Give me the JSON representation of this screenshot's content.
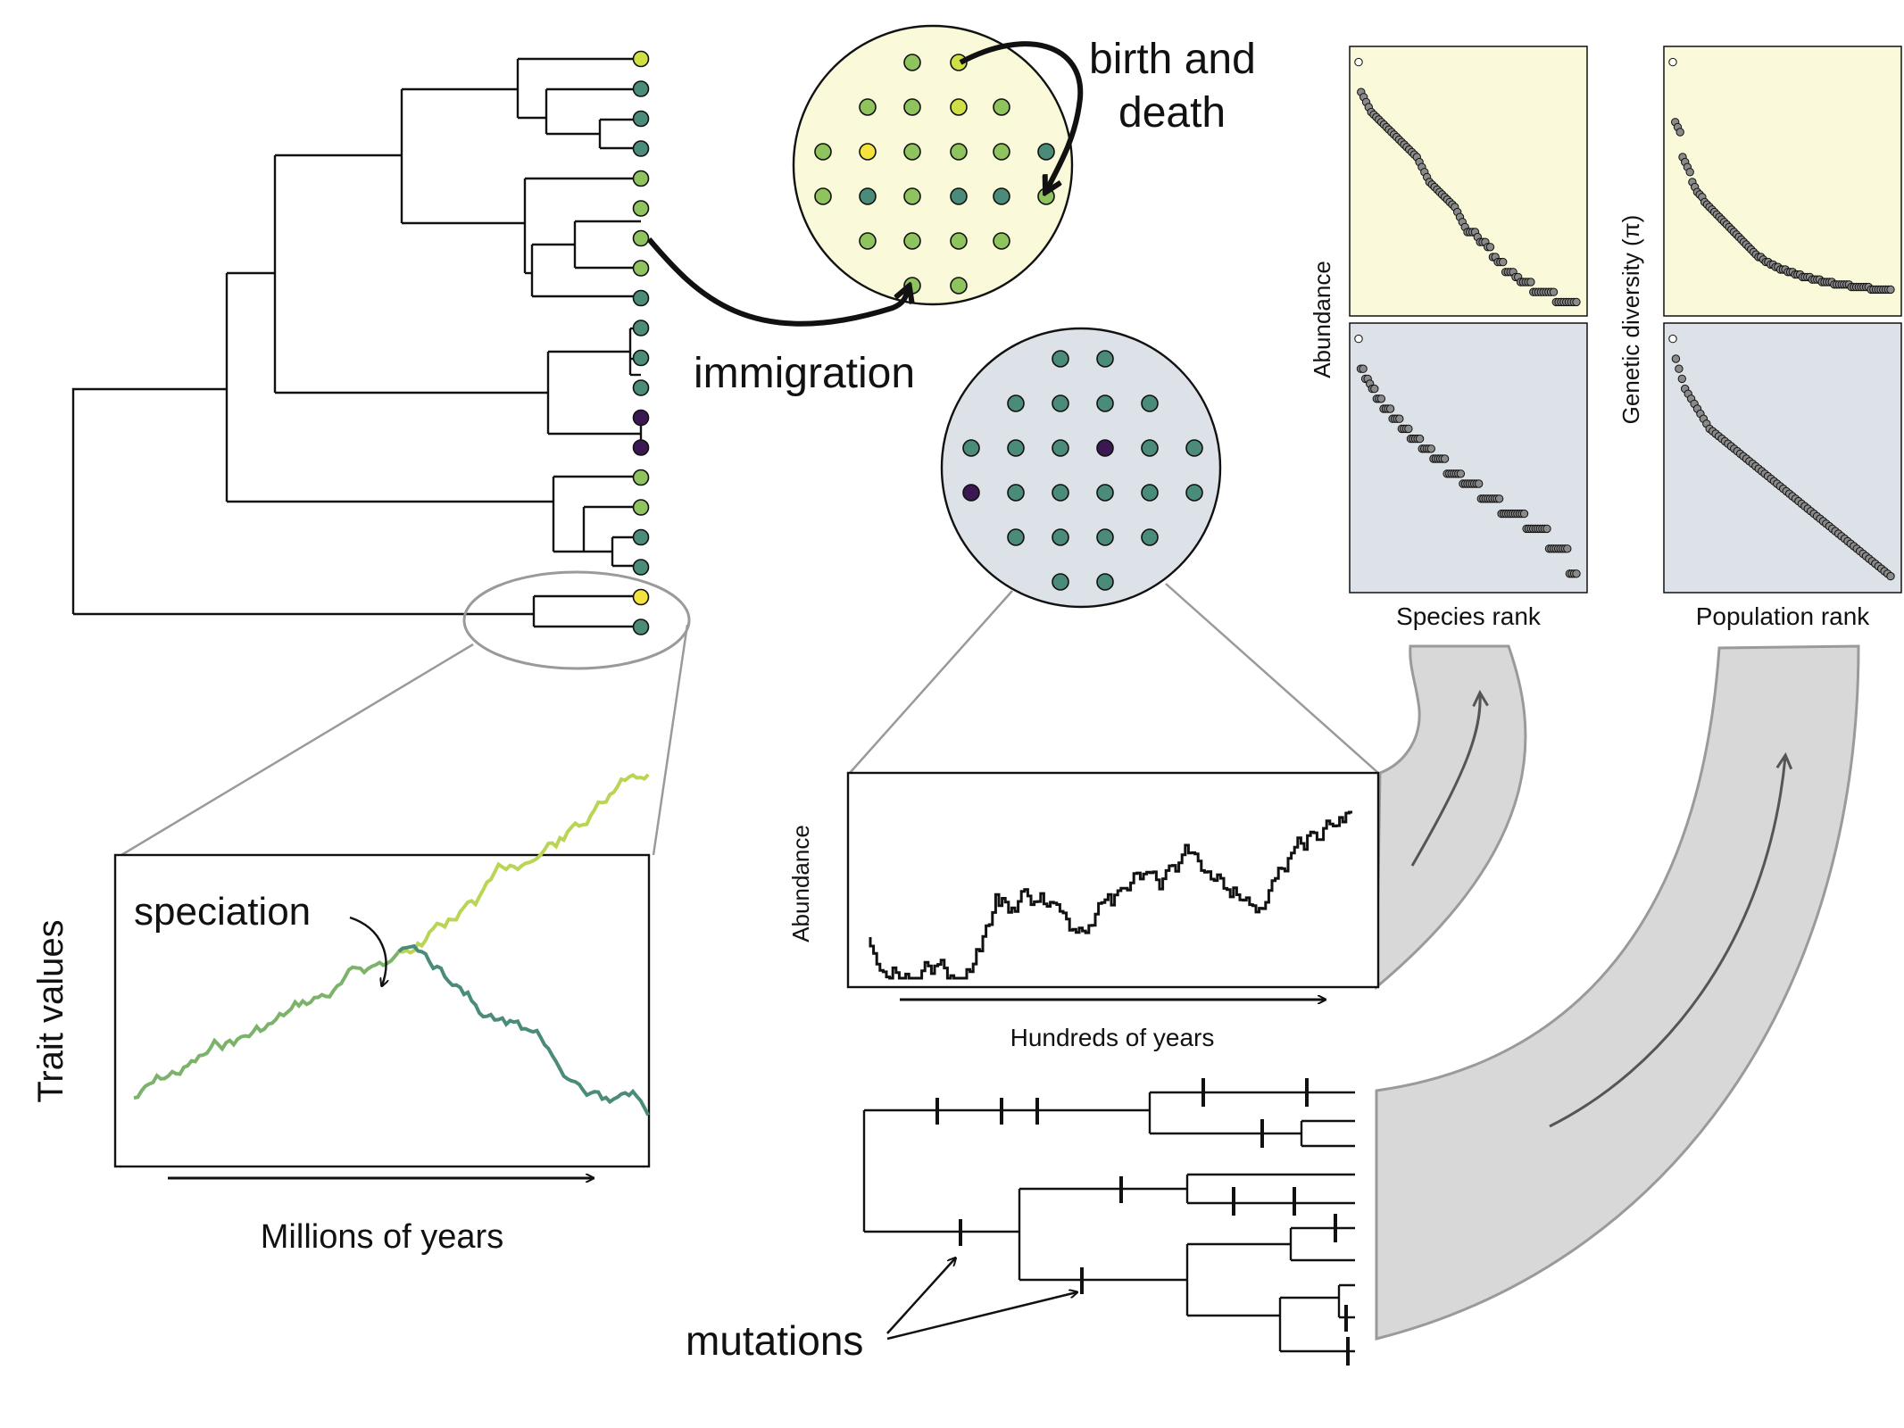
{
  "labels": {
    "birth_line1": "birth and",
    "birth_line2": "death",
    "immigration": "immigration",
    "speciation": "speciation",
    "trait_values": "Trait values",
    "millions_of_years": "Millions of years",
    "abundance_ts": "Abundance",
    "hundreds_of_years": "Hundreds of years",
    "mutations": "mutations",
    "abundance_rank": "Abundance",
    "genetic_diversity": "Genetic diversity (π)",
    "species_rank": "Species rank",
    "population_rank": "Population rank"
  },
  "colors": {
    "yellow_panel": "#faf9d9",
    "gray_panel": "#dce2e7",
    "teal": "#4b8b7a",
    "green": "#8fc35d",
    "lime": "#cfe046",
    "yellow": "#f4e33d",
    "purple": "#3c1852",
    "ribbon": "#d8d8d8",
    "outline": "#9a9a9a"
  },
  "phylo_tips": [
    "lime",
    "teal",
    "teal",
    "teal",
    "green",
    "green",
    "green",
    "green",
    "teal",
    "teal",
    "teal",
    "teal",
    "purple",
    "purple",
    "green",
    "green",
    "teal",
    "teal",
    "yellow",
    "teal"
  ],
  "local_community": [
    "green",
    "green",
    "green",
    "green",
    "green",
    "green",
    "green",
    "green",
    "lime",
    "green",
    "green",
    "green",
    "green",
    "green",
    "green",
    "green",
    "green",
    "green",
    "green",
    "green",
    "green",
    "green",
    "green",
    "green"
  ],
  "metacommunity": [
    "teal",
    "teal",
    "teal",
    "teal",
    "teal",
    "teal",
    "teal",
    "teal",
    "teal",
    "purple",
    "teal",
    "teal",
    "purple",
    "teal",
    "teal",
    "teal",
    "teal",
    "teal",
    "teal",
    "teal",
    "teal",
    "teal",
    "teal",
    "teal"
  ],
  "chart_data": [
    {
      "type": "scatter",
      "ylabel": "Abundance",
      "xlabel": "",
      "panel": "top-left",
      "values": [
        98,
        86,
        84,
        82,
        80,
        78,
        77,
        76,
        75,
        74,
        73,
        72,
        71,
        70,
        69,
        68,
        67,
        66,
        65,
        64,
        63,
        62,
        61,
        60,
        58,
        56,
        54,
        52,
        50,
        49,
        48,
        47,
        46,
        45,
        44,
        43,
        42,
        41,
        40,
        38,
        36,
        34,
        32,
        30,
        30,
        30,
        30,
        28,
        26,
        26,
        26,
        24,
        24,
        20,
        20,
        18,
        18,
        18,
        14,
        14,
        14,
        14,
        12,
        12,
        10,
        10,
        10,
        10,
        10,
        6,
        6,
        6,
        6,
        6,
        6,
        6,
        6,
        6,
        2,
        2,
        2,
        2,
        2,
        2,
        2,
        2,
        2
      ]
    },
    {
      "type": "scatter",
      "xlabel": "Species rank",
      "panel": "bottom-left",
      "values": [
        98,
        86,
        86,
        82,
        82,
        80,
        78,
        78,
        74,
        74,
        74,
        70,
        70,
        70,
        70,
        66,
        66,
        66,
        66,
        62,
        62,
        62,
        62,
        58,
        58,
        58,
        58,
        58,
        54,
        54,
        54,
        54,
        54,
        50,
        50,
        50,
        50,
        50,
        50,
        44,
        44,
        44,
        44,
        44,
        44,
        44,
        40,
        40,
        40,
        40,
        40,
        40,
        40,
        40,
        34,
        34,
        34,
        34,
        34,
        34,
        34,
        34,
        34,
        28,
        28,
        28,
        28,
        28,
        28,
        28,
        28,
        28,
        28,
        28,
        22,
        22,
        22,
        22,
        22,
        22,
        22,
        22,
        22,
        22,
        14,
        14,
        14,
        14,
        14,
        14,
        14,
        14,
        14,
        4,
        4,
        4,
        4
      ]
    },
    {
      "type": "scatter",
      "ylabel": "Genetic diversity (π)",
      "xlabel": "",
      "panel": "top-right",
      "values": [
        98,
        74,
        72,
        70,
        60,
        58,
        56,
        54,
        50,
        48,
        46,
        45,
        44,
        42,
        41,
        40,
        39,
        38,
        37,
        36,
        35,
        34,
        33,
        32,
        31,
        30,
        29,
        28,
        27,
        26,
        25,
        24,
        23,
        22,
        21,
        20,
        20,
        19,
        18,
        18,
        17,
        17,
        16,
        16,
        15,
        15,
        15,
        14,
        14,
        14,
        13,
        13,
        13,
        12,
        12,
        12,
        12,
        11,
        11,
        11,
        11,
        10,
        10,
        10,
        10,
        10,
        9,
        9,
        9,
        9,
        9,
        9,
        9,
        8,
        8,
        8,
        8,
        8,
        8,
        8,
        8,
        7,
        7,
        7,
        7,
        7,
        7,
        7,
        7,
        7
      ]
    },
    {
      "type": "scatter",
      "xlabel": "Population rank",
      "panel": "bottom-right",
      "values": [
        98,
        90,
        86,
        82,
        78,
        76,
        74,
        72,
        70,
        68,
        66,
        64,
        62,
        61,
        60,
        59,
        58,
        57,
        56,
        55,
        54,
        53,
        52,
        51,
        50,
        49,
        48,
        47,
        46,
        45,
        44,
        43,
        42,
        41,
        40,
        39,
        38,
        37,
        36,
        35,
        34,
        33,
        32,
        31,
        30,
        29,
        28,
        27,
        26,
        25,
        24,
        23,
        22,
        21,
        20,
        19,
        18,
        17,
        16,
        15,
        14,
        13,
        12,
        11,
        10,
        9,
        8,
        7,
        6,
        5,
        4,
        3
      ]
    }
  ]
}
